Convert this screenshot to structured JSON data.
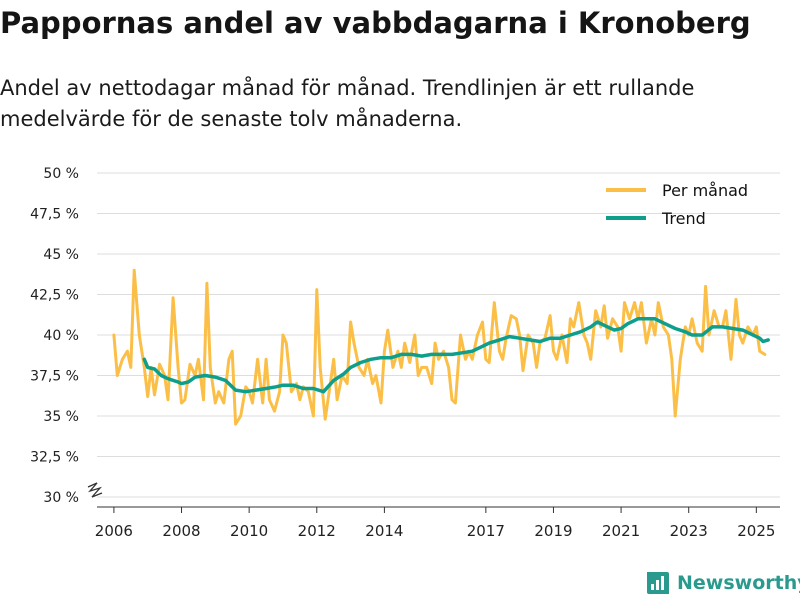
{
  "title": "Pappornas andel av vabbdagarna i Kronoberg",
  "subtitle": "Andel av nettodagar månad för månad. Trendlinjen är ett rullande medelvärde för de senaste tolv månaderna.",
  "brand": "Newsworthy",
  "colors": {
    "per_month": "#fbbf47",
    "trend": "#0d9e8c",
    "grid": "#dddddd",
    "axis": "#333333",
    "brand": "#2a9a8e"
  },
  "chart_data": {
    "type": "line",
    "xlim": [
      2005.5,
      2025.7
    ],
    "ylim": [
      30,
      50
    ],
    "y_ticks": [
      {
        "value": 30,
        "label": "30 %"
      },
      {
        "value": 32.5,
        "label": "32,5 %"
      },
      {
        "value": 35,
        "label": "35 %"
      },
      {
        "value": 37.5,
        "label": "37,5 %"
      },
      {
        "value": 40,
        "label": "40 %"
      },
      {
        "value": 42.5,
        "label": "42,5 %"
      },
      {
        "value": 45,
        "label": "45 %"
      },
      {
        "value": 47.5,
        "label": "47,5 %"
      },
      {
        "value": 50,
        "label": "50 %"
      }
    ],
    "x_ticks": [
      {
        "value": 2006,
        "label": "2006"
      },
      {
        "value": 2008,
        "label": "2008"
      },
      {
        "value": 2010,
        "label": "2010"
      },
      {
        "value": 2012,
        "label": "2012"
      },
      {
        "value": 2014,
        "label": "2014"
      },
      {
        "value": 2017,
        "label": "2017"
      },
      {
        "value": 2019,
        "label": "2019"
      },
      {
        "value": 2021,
        "label": "2021"
      },
      {
        "value": 2023,
        "label": "2023"
      },
      {
        "value": 2025,
        "label": "2025"
      }
    ],
    "axis_break": true,
    "grid": true,
    "legend_position": "top-right",
    "series": [
      {
        "name": "Per månad",
        "points": [
          [
            2006.0,
            40.0
          ],
          [
            2006.1,
            37.5
          ],
          [
            2006.25,
            38.5
          ],
          [
            2006.4,
            39.0
          ],
          [
            2006.5,
            38.0
          ],
          [
            2006.6,
            44.0
          ],
          [
            2006.75,
            40.0
          ],
          [
            2006.9,
            38.0
          ],
          [
            2007.0,
            36.2
          ],
          [
            2007.1,
            38.0
          ],
          [
            2007.2,
            36.3
          ],
          [
            2007.35,
            38.2
          ],
          [
            2007.5,
            37.5
          ],
          [
            2007.6,
            36.0
          ],
          [
            2007.75,
            42.3
          ],
          [
            2007.9,
            38.0
          ],
          [
            2008.0,
            35.8
          ],
          [
            2008.1,
            36.0
          ],
          [
            2008.25,
            38.2
          ],
          [
            2008.4,
            37.5
          ],
          [
            2008.5,
            38.5
          ],
          [
            2008.65,
            36.0
          ],
          [
            2008.75,
            43.2
          ],
          [
            2008.85,
            38.0
          ],
          [
            2009.0,
            35.8
          ],
          [
            2009.1,
            36.5
          ],
          [
            2009.25,
            35.8
          ],
          [
            2009.4,
            38.5
          ],
          [
            2009.5,
            39.0
          ],
          [
            2009.6,
            34.5
          ],
          [
            2009.75,
            35.0
          ],
          [
            2009.9,
            36.8
          ],
          [
            2010.0,
            36.5
          ],
          [
            2010.1,
            35.8
          ],
          [
            2010.25,
            38.5
          ],
          [
            2010.4,
            35.8
          ],
          [
            2010.5,
            38.5
          ],
          [
            2010.6,
            36.0
          ],
          [
            2010.75,
            35.3
          ],
          [
            2010.9,
            36.5
          ],
          [
            2011.0,
            40.0
          ],
          [
            2011.1,
            39.5
          ],
          [
            2011.25,
            36.5
          ],
          [
            2011.4,
            37.0
          ],
          [
            2011.5,
            36.0
          ],
          [
            2011.6,
            36.8
          ],
          [
            2011.75,
            36.5
          ],
          [
            2011.9,
            35.0
          ],
          [
            2012.0,
            42.8
          ],
          [
            2012.1,
            38.0
          ],
          [
            2012.25,
            34.8
          ],
          [
            2012.4,
            37.0
          ],
          [
            2012.5,
            38.5
          ],
          [
            2012.6,
            36.0
          ],
          [
            2012.75,
            37.5
          ],
          [
            2012.9,
            37.0
          ],
          [
            2013.0,
            40.8
          ],
          [
            2013.1,
            39.5
          ],
          [
            2013.25,
            38.0
          ],
          [
            2013.4,
            37.5
          ],
          [
            2013.5,
            38.5
          ],
          [
            2013.65,
            37.0
          ],
          [
            2013.75,
            37.5
          ],
          [
            2013.9,
            35.8
          ],
          [
            2014.0,
            39.0
          ],
          [
            2014.1,
            40.3
          ],
          [
            2014.25,
            38.0
          ],
          [
            2014.4,
            39.0
          ],
          [
            2014.5,
            38.0
          ],
          [
            2014.6,
            39.5
          ],
          [
            2014.75,
            38.3
          ],
          [
            2014.9,
            40.0
          ],
          [
            2015.0,
            37.5
          ],
          [
            2015.1,
            38.0
          ],
          [
            2015.25,
            38.0
          ],
          [
            2015.4,
            37.0
          ],
          [
            2015.5,
            39.5
          ],
          [
            2015.6,
            38.5
          ],
          [
            2015.75,
            39.0
          ],
          [
            2015.9,
            38.0
          ],
          [
            2016.0,
            36.0
          ],
          [
            2016.1,
            35.8
          ],
          [
            2016.25,
            40.0
          ],
          [
            2016.4,
            38.5
          ],
          [
            2016.5,
            39.0
          ],
          [
            2016.6,
            38.5
          ],
          [
            2016.75,
            40.0
          ],
          [
            2016.9,
            40.8
          ],
          [
            2017.0,
            38.5
          ],
          [
            2017.1,
            38.3
          ],
          [
            2017.25,
            42.0
          ],
          [
            2017.4,
            39.0
          ],
          [
            2017.5,
            38.5
          ],
          [
            2017.6,
            39.8
          ],
          [
            2017.75,
            41.2
          ],
          [
            2017.9,
            41.0
          ],
          [
            2018.0,
            40.0
          ],
          [
            2018.1,
            37.8
          ],
          [
            2018.25,
            40.0
          ],
          [
            2018.4,
            39.5
          ],
          [
            2018.5,
            38.0
          ],
          [
            2018.6,
            39.5
          ],
          [
            2018.75,
            39.8
          ],
          [
            2018.9,
            41.2
          ],
          [
            2019.0,
            39.0
          ],
          [
            2019.1,
            38.5
          ],
          [
            2019.25,
            40.0
          ],
          [
            2019.4,
            38.3
          ],
          [
            2019.5,
            41.0
          ],
          [
            2019.6,
            40.5
          ],
          [
            2019.75,
            42.0
          ],
          [
            2019.9,
            40.0
          ],
          [
            2020.0,
            39.5
          ],
          [
            2020.1,
            38.5
          ],
          [
            2020.25,
            41.5
          ],
          [
            2020.4,
            40.5
          ],
          [
            2020.5,
            41.8
          ],
          [
            2020.6,
            39.8
          ],
          [
            2020.75,
            41.0
          ],
          [
            2020.9,
            40.5
          ],
          [
            2021.0,
            39.0
          ],
          [
            2021.1,
            42.0
          ],
          [
            2021.25,
            41.0
          ],
          [
            2021.4,
            42.0
          ],
          [
            2021.5,
            41.0
          ],
          [
            2021.6,
            42.0
          ],
          [
            2021.75,
            39.5
          ],
          [
            2021.9,
            41.0
          ],
          [
            2022.0,
            40.0
          ],
          [
            2022.1,
            42.0
          ],
          [
            2022.25,
            40.5
          ],
          [
            2022.4,
            40.0
          ],
          [
            2022.5,
            38.5
          ],
          [
            2022.6,
            35.0
          ],
          [
            2022.75,
            38.5
          ],
          [
            2022.9,
            40.5
          ],
          [
            2023.0,
            40.0
          ],
          [
            2023.1,
            41.0
          ],
          [
            2023.25,
            39.5
          ],
          [
            2023.4,
            39.0
          ],
          [
            2023.5,
            43.0
          ],
          [
            2023.6,
            40.0
          ],
          [
            2023.75,
            41.5
          ],
          [
            2023.9,
            40.5
          ],
          [
            2024.0,
            40.5
          ],
          [
            2024.1,
            41.5
          ],
          [
            2024.25,
            38.5
          ],
          [
            2024.4,
            42.2
          ],
          [
            2024.5,
            40.0
          ],
          [
            2024.6,
            39.5
          ],
          [
            2024.75,
            40.5
          ],
          [
            2024.9,
            40.0
          ],
          [
            2025.0,
            40.5
          ],
          [
            2025.1,
            39.0
          ],
          [
            2025.25,
            38.8
          ]
        ]
      },
      {
        "name": "Trend",
        "points": [
          [
            2006.9,
            38.5
          ],
          [
            2007.0,
            38.0
          ],
          [
            2007.2,
            37.9
          ],
          [
            2007.4,
            37.5
          ],
          [
            2007.6,
            37.3
          ],
          [
            2007.9,
            37.1
          ],
          [
            2008.0,
            37.0
          ],
          [
            2008.2,
            37.1
          ],
          [
            2008.4,
            37.4
          ],
          [
            2008.7,
            37.5
          ],
          [
            2009.0,
            37.4
          ],
          [
            2009.3,
            37.2
          ],
          [
            2009.6,
            36.6
          ],
          [
            2009.9,
            36.5
          ],
          [
            2010.2,
            36.6
          ],
          [
            2010.5,
            36.7
          ],
          [
            2010.8,
            36.8
          ],
          [
            2011.0,
            36.9
          ],
          [
            2011.3,
            36.9
          ],
          [
            2011.6,
            36.7
          ],
          [
            2011.9,
            36.7
          ],
          [
            2012.2,
            36.5
          ],
          [
            2012.5,
            37.2
          ],
          [
            2012.8,
            37.6
          ],
          [
            2013.0,
            38.0
          ],
          [
            2013.3,
            38.3
          ],
          [
            2013.6,
            38.5
          ],
          [
            2013.9,
            38.6
          ],
          [
            2014.2,
            38.6
          ],
          [
            2014.5,
            38.8
          ],
          [
            2014.8,
            38.8
          ],
          [
            2015.1,
            38.7
          ],
          [
            2015.4,
            38.8
          ],
          [
            2015.7,
            38.8
          ],
          [
            2016.0,
            38.8
          ],
          [
            2016.3,
            38.9
          ],
          [
            2016.6,
            39.0
          ],
          [
            2016.9,
            39.3
          ],
          [
            2017.1,
            39.5
          ],
          [
            2017.4,
            39.7
          ],
          [
            2017.7,
            39.9
          ],
          [
            2018.0,
            39.8
          ],
          [
            2018.3,
            39.7
          ],
          [
            2018.6,
            39.6
          ],
          [
            2018.9,
            39.8
          ],
          [
            2019.2,
            39.8
          ],
          [
            2019.5,
            40.0
          ],
          [
            2019.8,
            40.2
          ],
          [
            2020.1,
            40.5
          ],
          [
            2020.3,
            40.8
          ],
          [
            2020.5,
            40.6
          ],
          [
            2020.8,
            40.3
          ],
          [
            2021.0,
            40.4
          ],
          [
            2021.2,
            40.7
          ],
          [
            2021.5,
            41.0
          ],
          [
            2021.8,
            41.0
          ],
          [
            2022.0,
            41.0
          ],
          [
            2022.3,
            40.7
          ],
          [
            2022.6,
            40.4
          ],
          [
            2022.9,
            40.2
          ],
          [
            2023.1,
            40.0
          ],
          [
            2023.4,
            40.0
          ],
          [
            2023.7,
            40.5
          ],
          [
            2024.0,
            40.5
          ],
          [
            2024.3,
            40.4
          ],
          [
            2024.6,
            40.3
          ],
          [
            2024.9,
            40.0
          ],
          [
            2025.1,
            39.8
          ],
          [
            2025.2,
            39.6
          ],
          [
            2025.35,
            39.7
          ]
        ]
      }
    ]
  }
}
